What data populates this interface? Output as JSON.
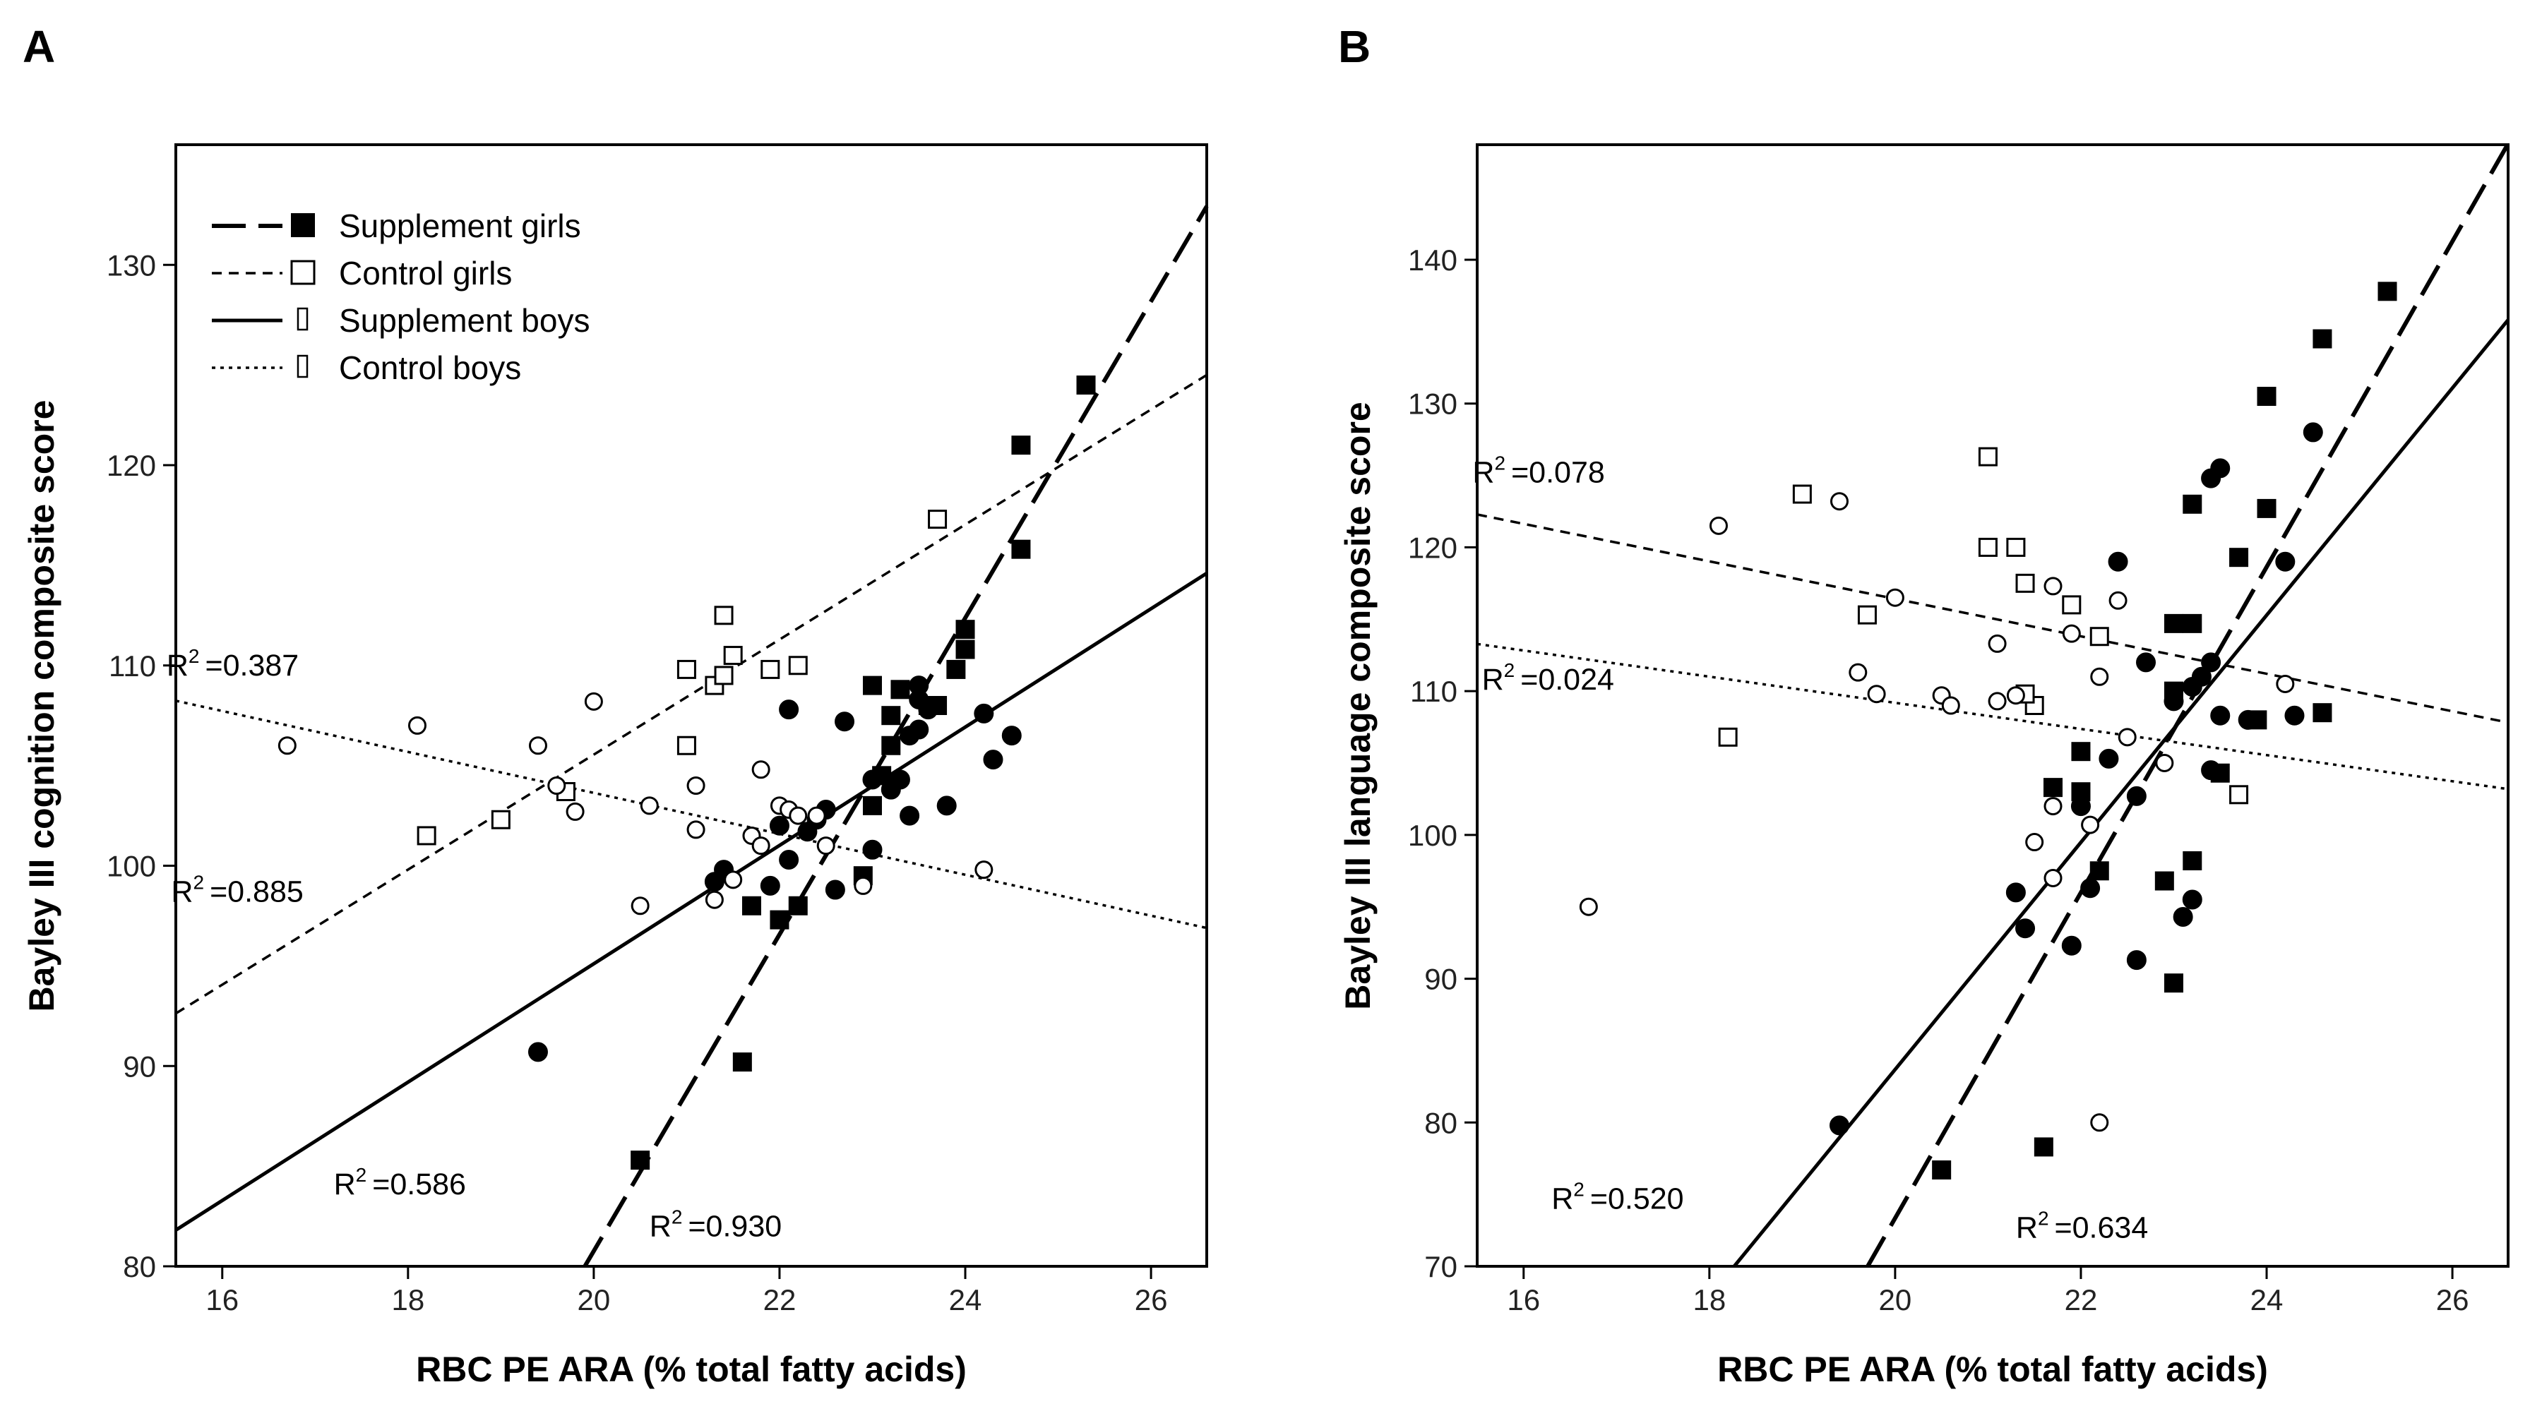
{
  "chart_data": [
    {
      "type": "scatter",
      "panel_label": "A",
      "xlabel": "RBC PE ARA (% total fatty acids)",
      "ylabel": "Bayley III cognition composite score",
      "xlim": [
        15.5,
        26.6
      ],
      "ylim": [
        80,
        136
      ],
      "xticks": [
        16,
        18,
        20,
        22,
        24,
        26
      ],
      "yticks": [
        80,
        90,
        100,
        110,
        120,
        130
      ],
      "legend": {
        "placement": "top-left",
        "entries": [
          {
            "label": "Supplement girls",
            "marker": "filled-square",
            "line": "long-dash"
          },
          {
            "label": "Control girls",
            "marker": "open-square",
            "line": "short-dash"
          },
          {
            "label": "Supplement boys",
            "marker": "filled-circle",
            "line": "solid"
          },
          {
            "label": "Control boys",
            "marker": "open-circle",
            "line": "dotted"
          }
        ]
      },
      "series": [
        {
          "name": "Supplement girls",
          "marker": "filled-square",
          "points": [
            [
              20.5,
              85.3
            ],
            [
              21.6,
              90.2
            ],
            [
              21.7,
              98.0
            ],
            [
              22.0,
              97.3
            ],
            [
              22.2,
              98.0
            ],
            [
              22.9,
              99.5
            ],
            [
              23.0,
              103.0
            ],
            [
              23.1,
              104.5
            ],
            [
              23.2,
              106.0
            ],
            [
              23.2,
              107.5
            ],
            [
              23.3,
              108.8
            ],
            [
              23.0,
              109.0
            ],
            [
              23.6,
              108.0
            ],
            [
              23.7,
              108.0
            ],
            [
              23.9,
              109.8
            ],
            [
              24.0,
              110.8
            ],
            [
              24.0,
              111.8
            ],
            [
              24.6,
              115.8
            ],
            [
              24.6,
              121.0
            ],
            [
              25.3,
              124.0
            ]
          ],
          "r2_label": "R",
          "r2_value": "=0.930"
        },
        {
          "name": "Control girls",
          "marker": "open-square",
          "points": [
            [
              18.2,
              101.5
            ],
            [
              19.0,
              102.3
            ],
            [
              19.7,
              103.7
            ],
            [
              21.0,
              106.0
            ],
            [
              21.0,
              109.8
            ],
            [
              21.3,
              109.0
            ],
            [
              21.4,
              109.5
            ],
            [
              21.5,
              110.5
            ],
            [
              21.4,
              112.5
            ],
            [
              21.9,
              109.8
            ],
            [
              22.2,
              110.0
            ],
            [
              23.7,
              117.3
            ]
          ],
          "r2_label": "R",
          "r2_value": "=0.885"
        },
        {
          "name": "Supplement boys",
          "marker": "filled-circle",
          "points": [
            [
              19.4,
              90.7
            ],
            [
              21.3,
              99.2
            ],
            [
              21.4,
              99.8
            ],
            [
              21.9,
              99.0
            ],
            [
              22.1,
              100.3
            ],
            [
              22.0,
              102.0
            ],
            [
              22.3,
              101.7
            ],
            [
              22.4,
              102.3
            ],
            [
              22.5,
              102.8
            ],
            [
              22.6,
              98.8
            ],
            [
              22.7,
              107.2
            ],
            [
              22.1,
              107.8
            ],
            [
              23.0,
              100.8
            ],
            [
              23.0,
              104.3
            ],
            [
              23.2,
              103.8
            ],
            [
              23.3,
              104.3
            ],
            [
              23.4,
              106.5
            ],
            [
              23.5,
              106.8
            ],
            [
              23.4,
              102.5
            ],
            [
              23.5,
              108.3
            ],
            [
              23.6,
              107.8
            ],
            [
              23.5,
              109.0
            ],
            [
              23.8,
              103.0
            ],
            [
              24.2,
              107.6
            ],
            [
              24.3,
              105.3
            ],
            [
              24.5,
              106.5
            ]
          ],
          "r2_label": "R",
          "r2_value": "=0.586"
        },
        {
          "name": "Control boys",
          "marker": "open-circle",
          "points": [
            [
              16.7,
              106.0
            ],
            [
              18.1,
              107.0
            ],
            [
              19.4,
              106.0
            ],
            [
              19.6,
              104.0
            ],
            [
              19.8,
              102.7
            ],
            [
              20.0,
              108.2
            ],
            [
              20.5,
              98.0
            ],
            [
              20.6,
              103.0
            ],
            [
              21.1,
              104.0
            ],
            [
              21.1,
              101.8
            ],
            [
              21.3,
              98.3
            ],
            [
              21.5,
              99.3
            ],
            [
              21.7,
              101.5
            ],
            [
              21.8,
              101.0
            ],
            [
              21.8,
              104.8
            ],
            [
              22.0,
              103.0
            ],
            [
              22.1,
              102.8
            ],
            [
              22.2,
              102.5
            ],
            [
              22.4,
              102.5
            ],
            [
              22.5,
              101.0
            ],
            [
              22.9,
              99.0
            ],
            [
              24.2,
              99.8
            ]
          ],
          "r2_label": "R",
          "r2_value": "=0.387"
        }
      ]
    },
    {
      "type": "scatter",
      "panel_label": "B",
      "xlabel": "RBC PE ARA (% total fatty acids)",
      "ylabel": "Bayley III language composite score",
      "xlim": [
        15.5,
        26.6
      ],
      "ylim": [
        70,
        148
      ],
      "xticks": [
        16,
        18,
        20,
        22,
        24,
        26
      ],
      "yticks": [
        70,
        80,
        90,
        100,
        110,
        120,
        130,
        140
      ],
      "series": [
        {
          "name": "Supplement girls",
          "marker": "filled-square",
          "points": [
            [
              20.5,
              76.7
            ],
            [
              21.6,
              78.3
            ],
            [
              21.7,
              103.3
            ],
            [
              22.0,
              103.0
            ],
            [
              22.0,
              105.8
            ],
            [
              22.2,
              97.5
            ],
            [
              22.9,
              96.8
            ],
            [
              23.0,
              89.7
            ],
            [
              23.0,
              110.0
            ],
            [
              23.0,
              114.7
            ],
            [
              23.2,
              114.7
            ],
            [
              23.2,
              98.2
            ],
            [
              23.2,
              123.0
            ],
            [
              23.5,
              104.3
            ],
            [
              23.7,
              119.3
            ],
            [
              23.9,
              108.0
            ],
            [
              24.0,
              122.7
            ],
            [
              24.0,
              130.5
            ],
            [
              24.6,
              108.5
            ],
            [
              24.6,
              134.5
            ],
            [
              25.3,
              137.8
            ]
          ],
          "r2_label": "R",
          "r2_value": "=0.634"
        },
        {
          "name": "Control girls",
          "marker": "open-square",
          "points": [
            [
              18.2,
              106.8
            ],
            [
              19.0,
              123.7
            ],
            [
              19.7,
              115.3
            ],
            [
              21.0,
              126.3
            ],
            [
              21.0,
              120.0
            ],
            [
              21.3,
              120.0
            ],
            [
              21.4,
              117.5
            ],
            [
              21.5,
              109.0
            ],
            [
              21.4,
              109.8
            ],
            [
              21.9,
              116.0
            ],
            [
              22.2,
              113.8
            ],
            [
              23.7,
              102.8
            ]
          ],
          "r2_label": "R",
          "r2_value": "=0.024"
        },
        {
          "name": "Supplement boys",
          "marker": "filled-circle",
          "points": [
            [
              19.4,
              79.8
            ],
            [
              21.3,
              96.0
            ],
            [
              21.4,
              93.5
            ],
            [
              21.9,
              92.3
            ],
            [
              22.1,
              96.3
            ],
            [
              22.0,
              102.0
            ],
            [
              22.3,
              105.3
            ],
            [
              22.4,
              119.0
            ],
            [
              22.6,
              91.3
            ],
            [
              22.6,
              102.7
            ],
            [
              22.7,
              112.0
            ],
            [
              23.0,
              109.3
            ],
            [
              23.1,
              94.3
            ],
            [
              23.2,
              95.5
            ],
            [
              23.2,
              110.3
            ],
            [
              23.3,
              111.0
            ],
            [
              23.4,
              112.0
            ],
            [
              23.4,
              104.5
            ],
            [
              23.4,
              124.8
            ],
            [
              23.5,
              125.5
            ],
            [
              23.5,
              108.3
            ],
            [
              23.8,
              108.0
            ],
            [
              24.2,
              119.0
            ],
            [
              24.3,
              108.3
            ],
            [
              24.5,
              128.0
            ]
          ],
          "r2_label": "R",
          "r2_value": "=0.520"
        },
        {
          "name": "Control boys",
          "marker": "open-circle",
          "points": [
            [
              16.7,
              95.0
            ],
            [
              18.1,
              121.5
            ],
            [
              19.4,
              123.2
            ],
            [
              19.6,
              111.3
            ],
            [
              19.8,
              109.8
            ],
            [
              20.0,
              116.5
            ],
            [
              20.5,
              109.7
            ],
            [
              20.6,
              109.0
            ],
            [
              21.1,
              113.3
            ],
            [
              21.1,
              109.3
            ],
            [
              21.3,
              109.7
            ],
            [
              21.5,
              99.5
            ],
            [
              21.7,
              97.0
            ],
            [
              21.7,
              102.0
            ],
            [
              21.7,
              117.3
            ],
            [
              21.9,
              114.0
            ],
            [
              22.1,
              100.7
            ],
            [
              22.2,
              80.0
            ],
            [
              22.2,
              111.0
            ],
            [
              22.4,
              116.3
            ],
            [
              22.5,
              106.8
            ],
            [
              22.9,
              105.0
            ],
            [
              24.2,
              110.5
            ]
          ],
          "r2_label": "R",
          "r2_value": "=0.078"
        }
      ]
    }
  ]
}
